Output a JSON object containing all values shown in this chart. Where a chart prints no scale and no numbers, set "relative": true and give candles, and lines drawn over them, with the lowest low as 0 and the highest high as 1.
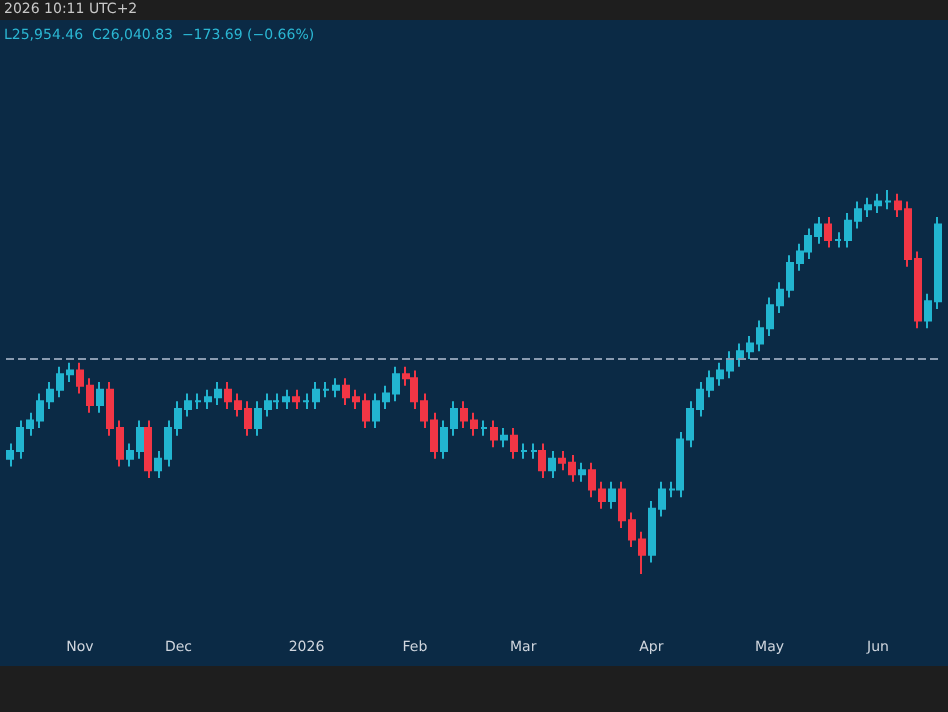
{
  "chart_data": {
    "type": "candlestick",
    "relative": true,
    "annotations": [
      "2026 10:11 UTC+2",
      "L25,954.46  C26,040.83  −173.69 (−0.66%)"
    ],
    "categories": [
      null,
      null,
      null,
      null,
      null,
      null,
      null,
      "Nov",
      null,
      null,
      null,
      null,
      null,
      null,
      null,
      null,
      null,
      "Dec",
      null,
      null,
      null,
      null,
      null,
      null,
      null,
      null,
      null,
      null,
      null,
      null,
      "2026",
      null,
      null,
      null,
      null,
      null,
      null,
      null,
      null,
      null,
      null,
      "Feb",
      null,
      null,
      null,
      null,
      null,
      null,
      null,
      null,
      null,
      null,
      "Mar",
      null,
      null,
      null,
      null,
      null,
      null,
      null,
      null,
      null,
      null,
      null,
      null,
      "Apr",
      null,
      null,
      null,
      null,
      null,
      null,
      null,
      null,
      null,
      null,
      null,
      "May",
      null,
      null,
      null,
      null,
      null,
      null,
      null,
      null,
      null,
      null,
      "Jun",
      null,
      null,
      null,
      null,
      null,
      null
    ],
    "ohlc": [
      [
        0.3,
        0.34,
        0.28,
        0.32
      ],
      [
        0.32,
        0.4,
        0.3,
        0.38
      ],
      [
        0.38,
        0.42,
        0.36,
        0.4
      ],
      [
        0.4,
        0.47,
        0.38,
        0.45
      ],
      [
        0.45,
        0.5,
        0.43,
        0.48
      ],
      [
        0.48,
        0.54,
        0.46,
        0.52
      ],
      [
        0.52,
        0.55,
        0.5,
        0.53
      ],
      [
        0.53,
        0.55,
        0.47,
        0.49
      ],
      [
        0.49,
        0.51,
        0.42,
        0.44
      ],
      [
        0.44,
        0.5,
        0.42,
        0.48
      ],
      [
        0.48,
        0.5,
        0.36,
        0.38
      ],
      [
        0.38,
        0.4,
        0.28,
        0.3
      ],
      [
        0.3,
        0.34,
        0.28,
        0.32
      ],
      [
        0.32,
        0.4,
        0.3,
        0.38
      ],
      [
        0.38,
        0.4,
        0.25,
        0.27
      ],
      [
        0.27,
        0.32,
        0.25,
        0.3
      ],
      [
        0.3,
        0.4,
        0.28,
        0.38
      ],
      [
        0.38,
        0.45,
        0.36,
        0.43
      ],
      [
        0.43,
        0.47,
        0.41,
        0.45
      ],
      [
        0.45,
        0.47,
        0.43,
        0.45
      ],
      [
        0.45,
        0.48,
        0.43,
        0.46
      ],
      [
        0.46,
        0.5,
        0.44,
        0.48
      ],
      [
        0.48,
        0.5,
        0.43,
        0.45
      ],
      [
        0.45,
        0.47,
        0.41,
        0.43
      ],
      [
        0.43,
        0.45,
        0.36,
        0.38
      ],
      [
        0.38,
        0.45,
        0.36,
        0.43
      ],
      [
        0.43,
        0.47,
        0.41,
        0.45
      ],
      [
        0.45,
        0.47,
        0.43,
        0.45
      ],
      [
        0.45,
        0.48,
        0.43,
        0.46
      ],
      [
        0.46,
        0.48,
        0.43,
        0.45
      ],
      [
        0.45,
        0.47,
        0.43,
        0.45
      ],
      [
        0.45,
        0.5,
        0.43,
        0.48
      ],
      [
        0.48,
        0.5,
        0.46,
        0.48
      ],
      [
        0.48,
        0.51,
        0.46,
        0.49
      ],
      [
        0.49,
        0.51,
        0.44,
        0.46
      ],
      [
        0.46,
        0.48,
        0.43,
        0.45
      ],
      [
        0.45,
        0.47,
        0.38,
        0.4
      ],
      [
        0.4,
        0.47,
        0.38,
        0.45
      ],
      [
        0.45,
        0.49,
        0.43,
        0.47
      ],
      [
        0.47,
        0.54,
        0.45,
        0.52
      ],
      [
        0.52,
        0.54,
        0.49,
        0.51
      ],
      [
        0.51,
        0.53,
        0.43,
        0.45
      ],
      [
        0.45,
        0.47,
        0.38,
        0.4
      ],
      [
        0.4,
        0.42,
        0.3,
        0.32
      ],
      [
        0.32,
        0.4,
        0.3,
        0.38
      ],
      [
        0.38,
        0.45,
        0.36,
        0.43
      ],
      [
        0.43,
        0.45,
        0.38,
        0.4
      ],
      [
        0.4,
        0.42,
        0.36,
        0.38
      ],
      [
        0.38,
        0.4,
        0.36,
        0.38
      ],
      [
        0.38,
        0.4,
        0.33,
        0.35
      ],
      [
        0.35,
        0.38,
        0.33,
        0.36
      ],
      [
        0.36,
        0.38,
        0.3,
        0.32
      ],
      [
        0.32,
        0.34,
        0.3,
        0.32
      ],
      [
        0.32,
        0.34,
        0.3,
        0.32
      ],
      [
        0.32,
        0.34,
        0.25,
        0.27
      ],
      [
        0.27,
        0.32,
        0.25,
        0.3
      ],
      [
        0.3,
        0.32,
        0.27,
        0.29
      ],
      [
        0.29,
        0.31,
        0.24,
        0.26
      ],
      [
        0.26,
        0.29,
        0.24,
        0.27
      ],
      [
        0.27,
        0.29,
        0.2,
        0.22
      ],
      [
        0.22,
        0.24,
        0.17,
        0.19
      ],
      [
        0.19,
        0.24,
        0.17,
        0.22
      ],
      [
        0.22,
        0.24,
        0.12,
        0.14
      ],
      [
        0.14,
        0.16,
        0.07,
        0.09
      ],
      [
        0.09,
        0.11,
        0.0,
        0.05
      ],
      [
        0.05,
        0.19,
        0.03,
        0.17
      ],
      [
        0.17,
        0.24,
        0.15,
        0.22
      ],
      [
        0.22,
        0.24,
        0.2,
        0.22
      ],
      [
        0.22,
        0.37,
        0.2,
        0.35
      ],
      [
        0.35,
        0.45,
        0.33,
        0.43
      ],
      [
        0.43,
        0.5,
        0.41,
        0.48
      ],
      [
        0.48,
        0.53,
        0.46,
        0.51
      ],
      [
        0.51,
        0.55,
        0.49,
        0.53
      ],
      [
        0.53,
        0.58,
        0.51,
        0.56
      ],
      [
        0.56,
        0.6,
        0.54,
        0.58
      ],
      [
        0.58,
        0.62,
        0.56,
        0.6
      ],
      [
        0.6,
        0.66,
        0.58,
        0.64
      ],
      [
        0.64,
        0.72,
        0.62,
        0.7
      ],
      [
        0.7,
        0.76,
        0.68,
        0.74
      ],
      [
        0.74,
        0.83,
        0.72,
        0.81
      ],
      [
        0.81,
        0.86,
        0.79,
        0.84
      ],
      [
        0.84,
        0.9,
        0.82,
        0.88
      ],
      [
        0.88,
        0.93,
        0.86,
        0.91
      ],
      [
        0.91,
        0.93,
        0.85,
        0.87
      ],
      [
        0.87,
        0.89,
        0.85,
        0.87
      ],
      [
        0.87,
        0.94,
        0.85,
        0.92
      ],
      [
        0.92,
        0.97,
        0.9,
        0.95
      ],
      [
        0.95,
        0.98,
        0.93,
        0.96
      ],
      [
        0.96,
        0.99,
        0.94,
        0.97
      ],
      [
        0.97,
        1.0,
        0.95,
        0.97
      ],
      [
        0.97,
        0.99,
        0.93,
        0.95
      ],
      [
        0.95,
        0.97,
        0.8,
        0.82
      ],
      [
        0.82,
        0.84,
        0.64,
        0.66
      ],
      [
        0.66,
        0.73,
        0.64,
        0.71
      ],
      [
        0.71,
        0.93,
        0.69,
        0.91
      ]
    ],
    "colors": [
      "#22b5d0",
      "#22b5d0",
      "#22b5d0",
      "#22b5d0",
      "#22b5d0",
      "#22b5d0",
      "#22b5d0",
      "#f23645",
      "#f23645",
      "#22b5d0",
      "#f23645",
      "#f23645",
      "#22b5d0",
      "#22b5d0",
      "#f23645",
      "#22b5d0",
      "#22b5d0",
      "#22b5d0",
      "#22b5d0",
      "#22b5d0",
      "#22b5d0",
      "#22b5d0",
      "#f23645",
      "#f23645",
      "#f23645",
      "#22b5d0",
      "#22b5d0",
      "#22b5d0",
      "#22b5d0",
      "#f23645",
      "#22b5d0",
      "#22b5d0",
      "#22b5d0",
      "#22b5d0",
      "#f23645",
      "#f23645",
      "#f23645",
      "#22b5d0",
      "#22b5d0",
      "#22b5d0",
      "#f23645",
      "#f23645",
      "#f23645",
      "#f23645",
      "#22b5d0",
      "#22b5d0",
      "#f23645",
      "#f23645",
      "#22b5d0",
      "#f23645",
      "#22b5d0",
      "#f23645",
      "#22b5d0",
      "#22b5d0",
      "#f23645",
      "#22b5d0",
      "#f23645",
      "#f23645",
      "#22b5d0",
      "#f23645",
      "#f23645",
      "#22b5d0",
      "#f23645",
      "#f23645",
      "#f23645",
      "#22b5d0",
      "#22b5d0",
      "#22b5d0",
      "#22b5d0",
      "#22b5d0",
      "#22b5d0",
      "#22b5d0",
      "#22b5d0",
      "#22b5d0",
      "#22b5d0",
      "#22b5d0",
      "#22b5d0",
      "#22b5d0",
      "#22b5d0",
      "#22b5d0",
      "#22b5d0",
      "#22b5d0",
      "#22b5d0",
      "#f23645",
      "#22b5d0",
      "#22b5d0",
      "#22b5d0",
      "#22b5d0",
      "#22b5d0",
      "#22b5d0",
      "#f23645",
      "#f23645",
      "#f23645",
      "#22b5d0",
      "#22b5d0"
    ],
    "ref_lines": [
      {
        "axis": "y",
        "value": 0.56,
        "color": "#8a9bb0",
        "line_style": "dashed"
      }
    ],
    "grid": false
  }
}
